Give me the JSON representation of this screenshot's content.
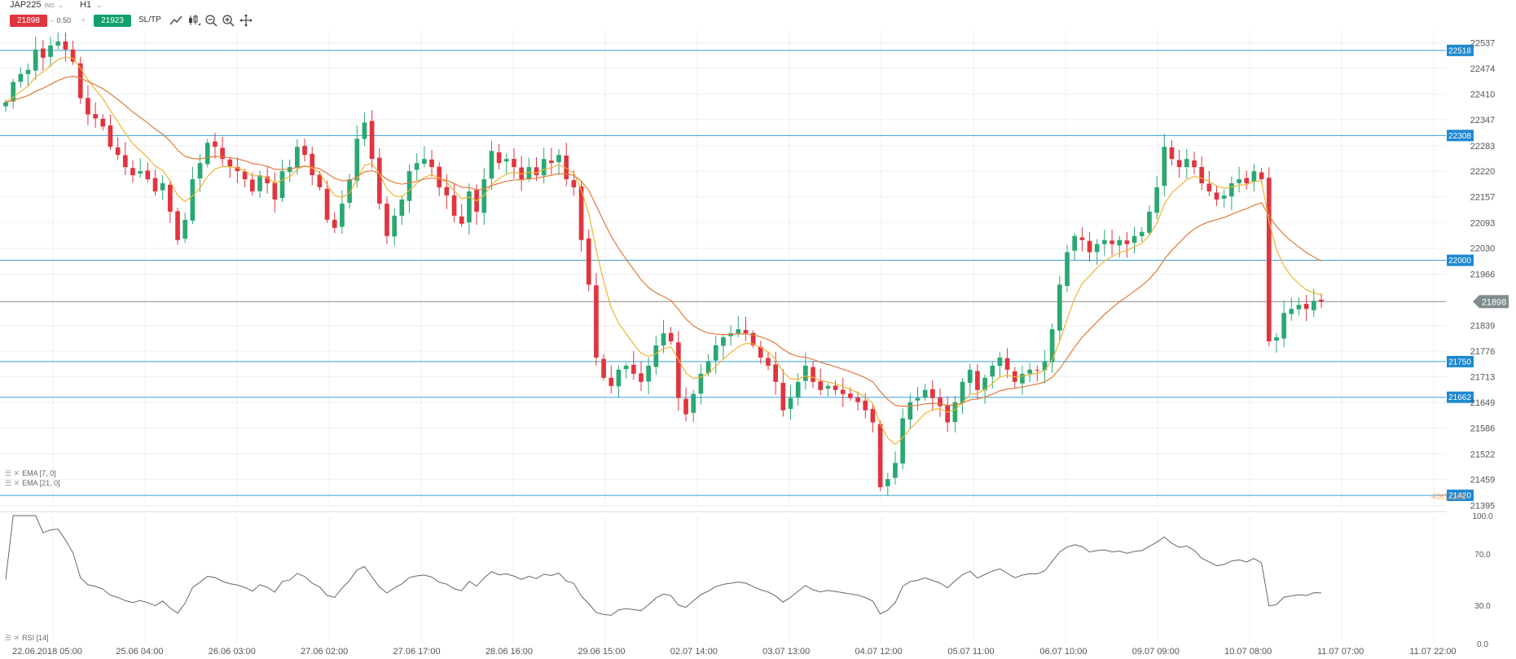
{
  "toolbar": {
    "symbol": "JAP225",
    "symbol_tag": "IND",
    "timeframe": "H1",
    "sell_price": "21898",
    "quantity": "0.50",
    "qty_minus": "–",
    "qty_plus": "+",
    "buy_price": "21923",
    "sltp_label": "SL/TP",
    "tool_icons": [
      "line-tool-icon",
      "candle-type-icon",
      "zoom-out-icon",
      "zoom-in-icon",
      "crosshair-icon"
    ]
  },
  "indicators": {
    "ema7_label": "EMA [7, 0]",
    "ema21_label": "EMA [21, 0]",
    "rsi_label": "RSI [14]",
    "faded_label": "40t1.18s"
  },
  "colors": {
    "up": "#2aa873",
    "down": "#e0353f",
    "level_line": "#3aa0d8",
    "level_tag": "#1e88d0",
    "current_tag": "#7f8c8d",
    "ema7": "#f0b432",
    "ema21": "#e07a3c",
    "rsi": "#666666"
  },
  "chart_data": [
    {
      "type": "candlestick",
      "instrument": "JAP225",
      "timeframe": "H1",
      "y_ticks": [
        22537,
        22474,
        22410,
        22347,
        22283,
        22220,
        22157,
        22093,
        22030,
        21966,
        21839,
        21776,
        21713,
        21649,
        21586,
        21522,
        21459,
        21395
      ],
      "ylim": [
        21390,
        22570
      ],
      "x_tick_labels": [
        "22.06.2018 05:00",
        "25.06 04:00",
        "26.06 03:00",
        "27.06 02:00",
        "27.06 17:00",
        "28.06 16:00",
        "29.06 15:00",
        "02.07 14:00",
        "03.07 13:00",
        "04.07 12:00",
        "05.07 11:00",
        "06.07 10:00",
        "09.07 09:00",
        "10.07 08:00",
        "11.07 07:00",
        "11.07 22:00"
      ],
      "levels": [
        22518,
        22308,
        22000,
        21750,
        21662,
        21420
      ],
      "current_price": 21898,
      "closes": [
        22390,
        22440,
        22460,
        22470,
        22520,
        22500,
        22530,
        22540,
        22520,
        22490,
        22400,
        22360,
        22350,
        22330,
        22280,
        22260,
        22230,
        22210,
        22220,
        22200,
        22170,
        22190,
        22120,
        22050,
        22100,
        22200,
        22240,
        22290,
        22280,
        22250,
        22230,
        22220,
        22200,
        22170,
        22210,
        22190,
        22150,
        22220,
        22230,
        22280,
        22260,
        22210,
        22180,
        22100,
        22080,
        22140,
        22200,
        22300,
        22340,
        22250,
        22140,
        22060,
        22110,
        22150,
        22220,
        22240,
        22250,
        22230,
        22180,
        22160,
        22110,
        22090,
        22170,
        22120,
        22200,
        22270,
        22240,
        22250,
        22230,
        22200,
        22230,
        22210,
        22250,
        22240,
        22260,
        22200,
        22180,
        22050,
        21940,
        21760,
        21710,
        21690,
        21730,
        21740,
        21720,
        21700,
        21740,
        21790,
        21820,
        21800,
        21660,
        21620,
        21670,
        21720,
        21750,
        21790,
        21810,
        21820,
        21830,
        21820,
        21790,
        21760,
        21740,
        21700,
        21630,
        21660,
        21700,
        21740,
        21700,
        21680,
        21690,
        21680,
        21670,
        21660,
        21650,
        21630,
        21600,
        21440,
        21460,
        21500,
        21610,
        21650,
        21660,
        21680,
        21660,
        21640,
        21600,
        21650,
        21700,
        21730,
        21680,
        21710,
        21740,
        21760,
        21730,
        21700,
        21720,
        21730,
        21730,
        21750,
        21830,
        21940,
        22020,
        22060,
        22050,
        22020,
        22040,
        22050,
        22040,
        22050,
        22040,
        22060,
        22070,
        22120,
        22180,
        22280,
        22250,
        22230,
        22250,
        22230,
        22190,
        22170,
        22150,
        22160,
        22190,
        22200,
        22190,
        22220,
        22200,
        21800,
        21810,
        21870,
        21880,
        21890,
        21880,
        21900,
        21898
      ]
    },
    {
      "type": "line",
      "name": "RSI [14]",
      "y_ticks": [
        100.0,
        70.0,
        30.0,
        0.0
      ],
      "ylim": [
        0,
        100
      ]
    }
  ]
}
